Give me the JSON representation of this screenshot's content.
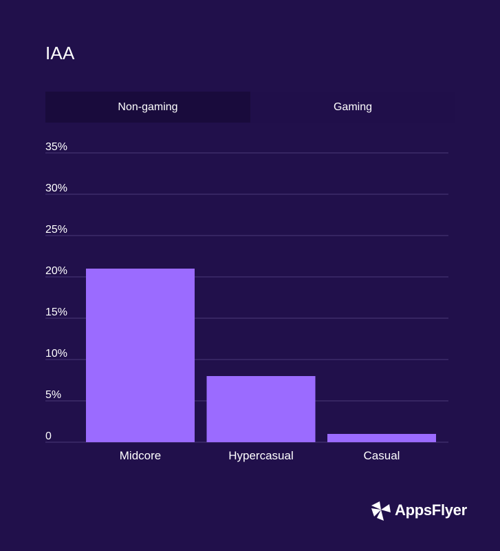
{
  "title": "IAA",
  "tabs": [
    {
      "label": "Non-gaming",
      "active": true
    },
    {
      "label": "Gaming",
      "active": false
    }
  ],
  "colors": {
    "background": "#21104b",
    "bar": "#9b6bff",
    "grid": "#4a3a7a"
  },
  "brand": {
    "name": "AppsFlyer",
    "logo_icon": "appsflyer-logo-icon"
  },
  "chart_data": {
    "type": "bar",
    "categories": [
      "Midcore",
      "Hypercasual",
      "Casual"
    ],
    "values": [
      21,
      8,
      1
    ],
    "y_ticks": [
      "0",
      "5%",
      "10%",
      "15%",
      "20%",
      "25%",
      "30%",
      "35%"
    ],
    "ylim": [
      0,
      35
    ],
    "grid": true,
    "title": "",
    "xlabel": "",
    "ylabel": ""
  }
}
